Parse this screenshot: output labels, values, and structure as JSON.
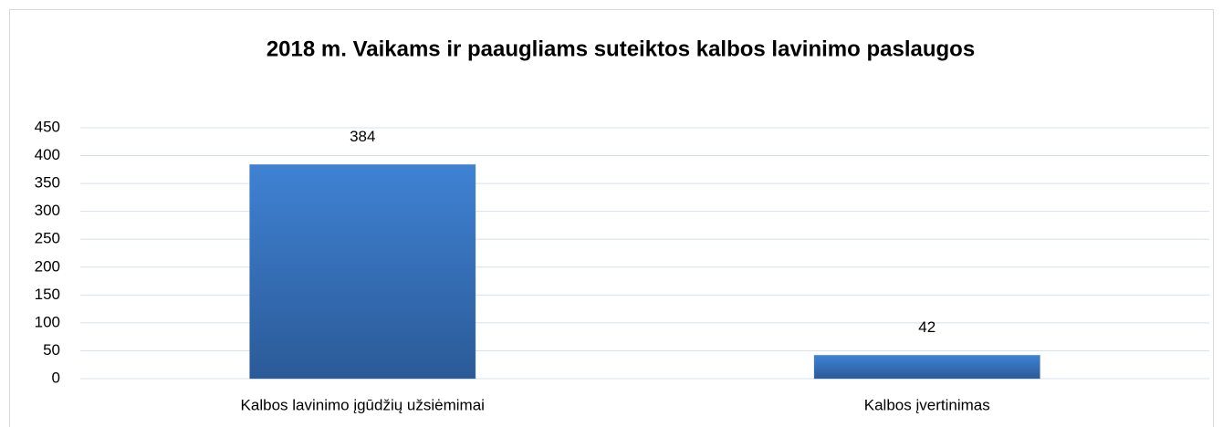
{
  "chart_data": {
    "type": "bar",
    "title": "2018 m.  Vaikams ir paaugliams suteiktos kalbos lavinimo paslaugos",
    "categories": [
      "Kalbos lavinimo įgūdžių užsiėmimai",
      "Kalbos įvertinimas"
    ],
    "values": [
      384,
      42
    ],
    "color": "#3a78c4",
    "ylim": [
      0,
      450
    ],
    "yticks": [
      0,
      50,
      100,
      150,
      200,
      250,
      300,
      350,
      400,
      450
    ],
    "grid": true
  }
}
